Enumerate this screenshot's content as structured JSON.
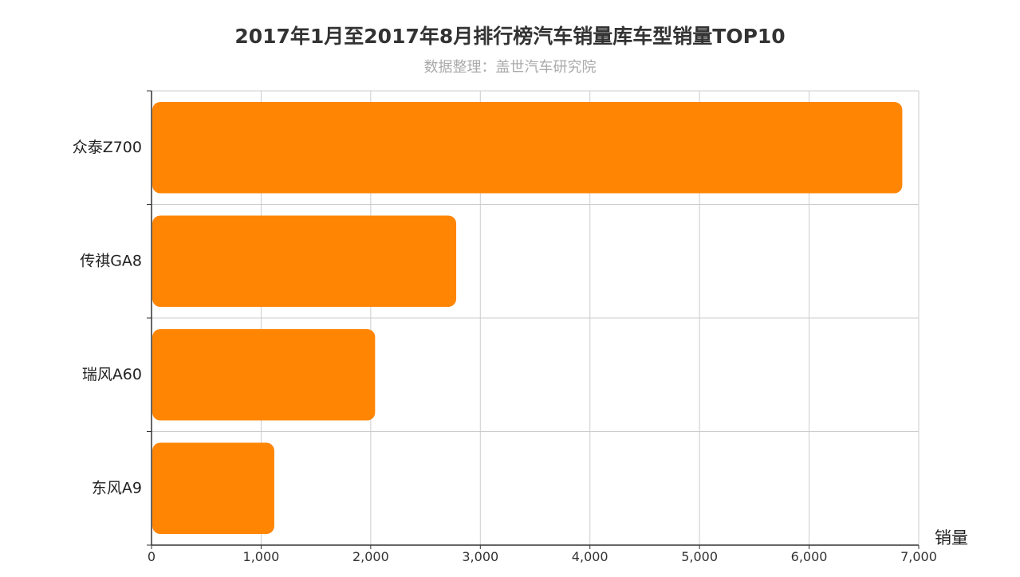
{
  "chart_data": {
    "type": "bar",
    "orientation": "horizontal",
    "title": "2017年1月至2017年8月排行榜汽车销量库车型销量TOP10",
    "subtitle": "数据整理：盖世汽车研究院",
    "xlabel": "销量",
    "ylabel": "",
    "categories": [
      "众泰Z700",
      "传祺GA8",
      "瑞风A60",
      "东风A9"
    ],
    "values": [
      6850,
      2780,
      2040,
      1120
    ],
    "xlim": [
      0,
      7000
    ],
    "ticks": [
      "0",
      "1,000",
      "2,000",
      "3,000",
      "4,000",
      "5,000",
      "6,000",
      "7,000"
    ],
    "bar_color": "#ff8503",
    "grid": true
  }
}
